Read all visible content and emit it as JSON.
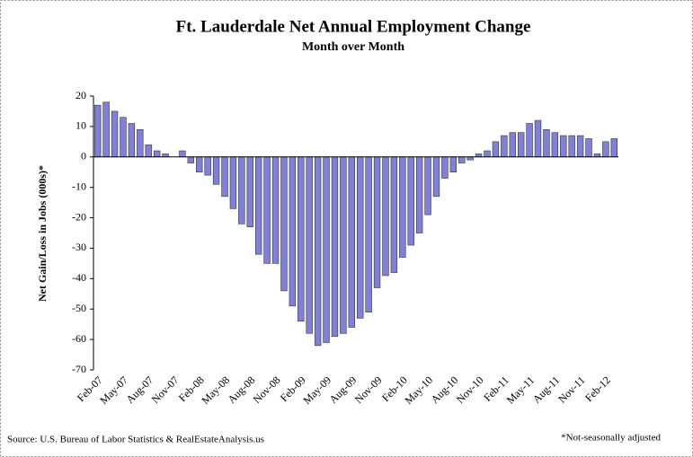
{
  "chart_data": {
    "type": "bar",
    "title": "Ft. Lauderdale Net Annual Employment Change",
    "subtitle": "Month over Month",
    "y_label": "Net Gain/Loss in Jobs (000s)*",
    "source": "Source: U.S. Bureau of Labor Statistics & RealEstateAnalysis.us",
    "note": "*Not-seasonally adjusted",
    "categories": [
      "Feb-07",
      null,
      null,
      "May-07",
      null,
      null,
      "Aug-07",
      null,
      null,
      "Nov-07",
      null,
      null,
      "Feb-08",
      null,
      null,
      "May-08",
      null,
      null,
      "Aug-08",
      null,
      null,
      "Nov-08",
      null,
      null,
      "Feb-09",
      null,
      null,
      "May-09",
      null,
      null,
      "Aug-09",
      null,
      null,
      "Nov-09",
      null,
      null,
      "Feb-10",
      null,
      null,
      "May-10",
      null,
      null,
      "Aug-10",
      null,
      null,
      "Nov-10",
      null,
      null,
      "Feb-11",
      null,
      null,
      "May-11",
      null,
      null,
      "Aug-11",
      null,
      null,
      "Nov-11",
      null,
      null,
      "Feb-12",
      null
    ],
    "values": [
      17,
      18,
      15,
      13,
      11,
      9,
      4,
      2,
      1,
      0,
      2,
      -2,
      -5,
      -6,
      -9,
      -13,
      -17,
      -22,
      -23,
      -32,
      -35,
      -35,
      -44,
      -49,
      -54,
      -58,
      -62,
      -61,
      -59,
      -58,
      -56,
      -53,
      -51,
      -43,
      -39,
      -38,
      -33,
      -29,
      -25,
      -19,
      -13,
      -7,
      -5,
      -2,
      -1,
      1,
      2,
      5,
      7,
      8,
      8,
      11,
      12,
      9,
      8,
      7,
      7,
      7,
      6,
      1,
      5,
      6
    ],
    "color": "#8080dc",
    "ylim": [
      -70,
      20
    ],
    "yticks": [
      -70,
      -60,
      -50,
      -40,
      -30,
      -20,
      -10,
      0,
      10,
      20
    ]
  }
}
